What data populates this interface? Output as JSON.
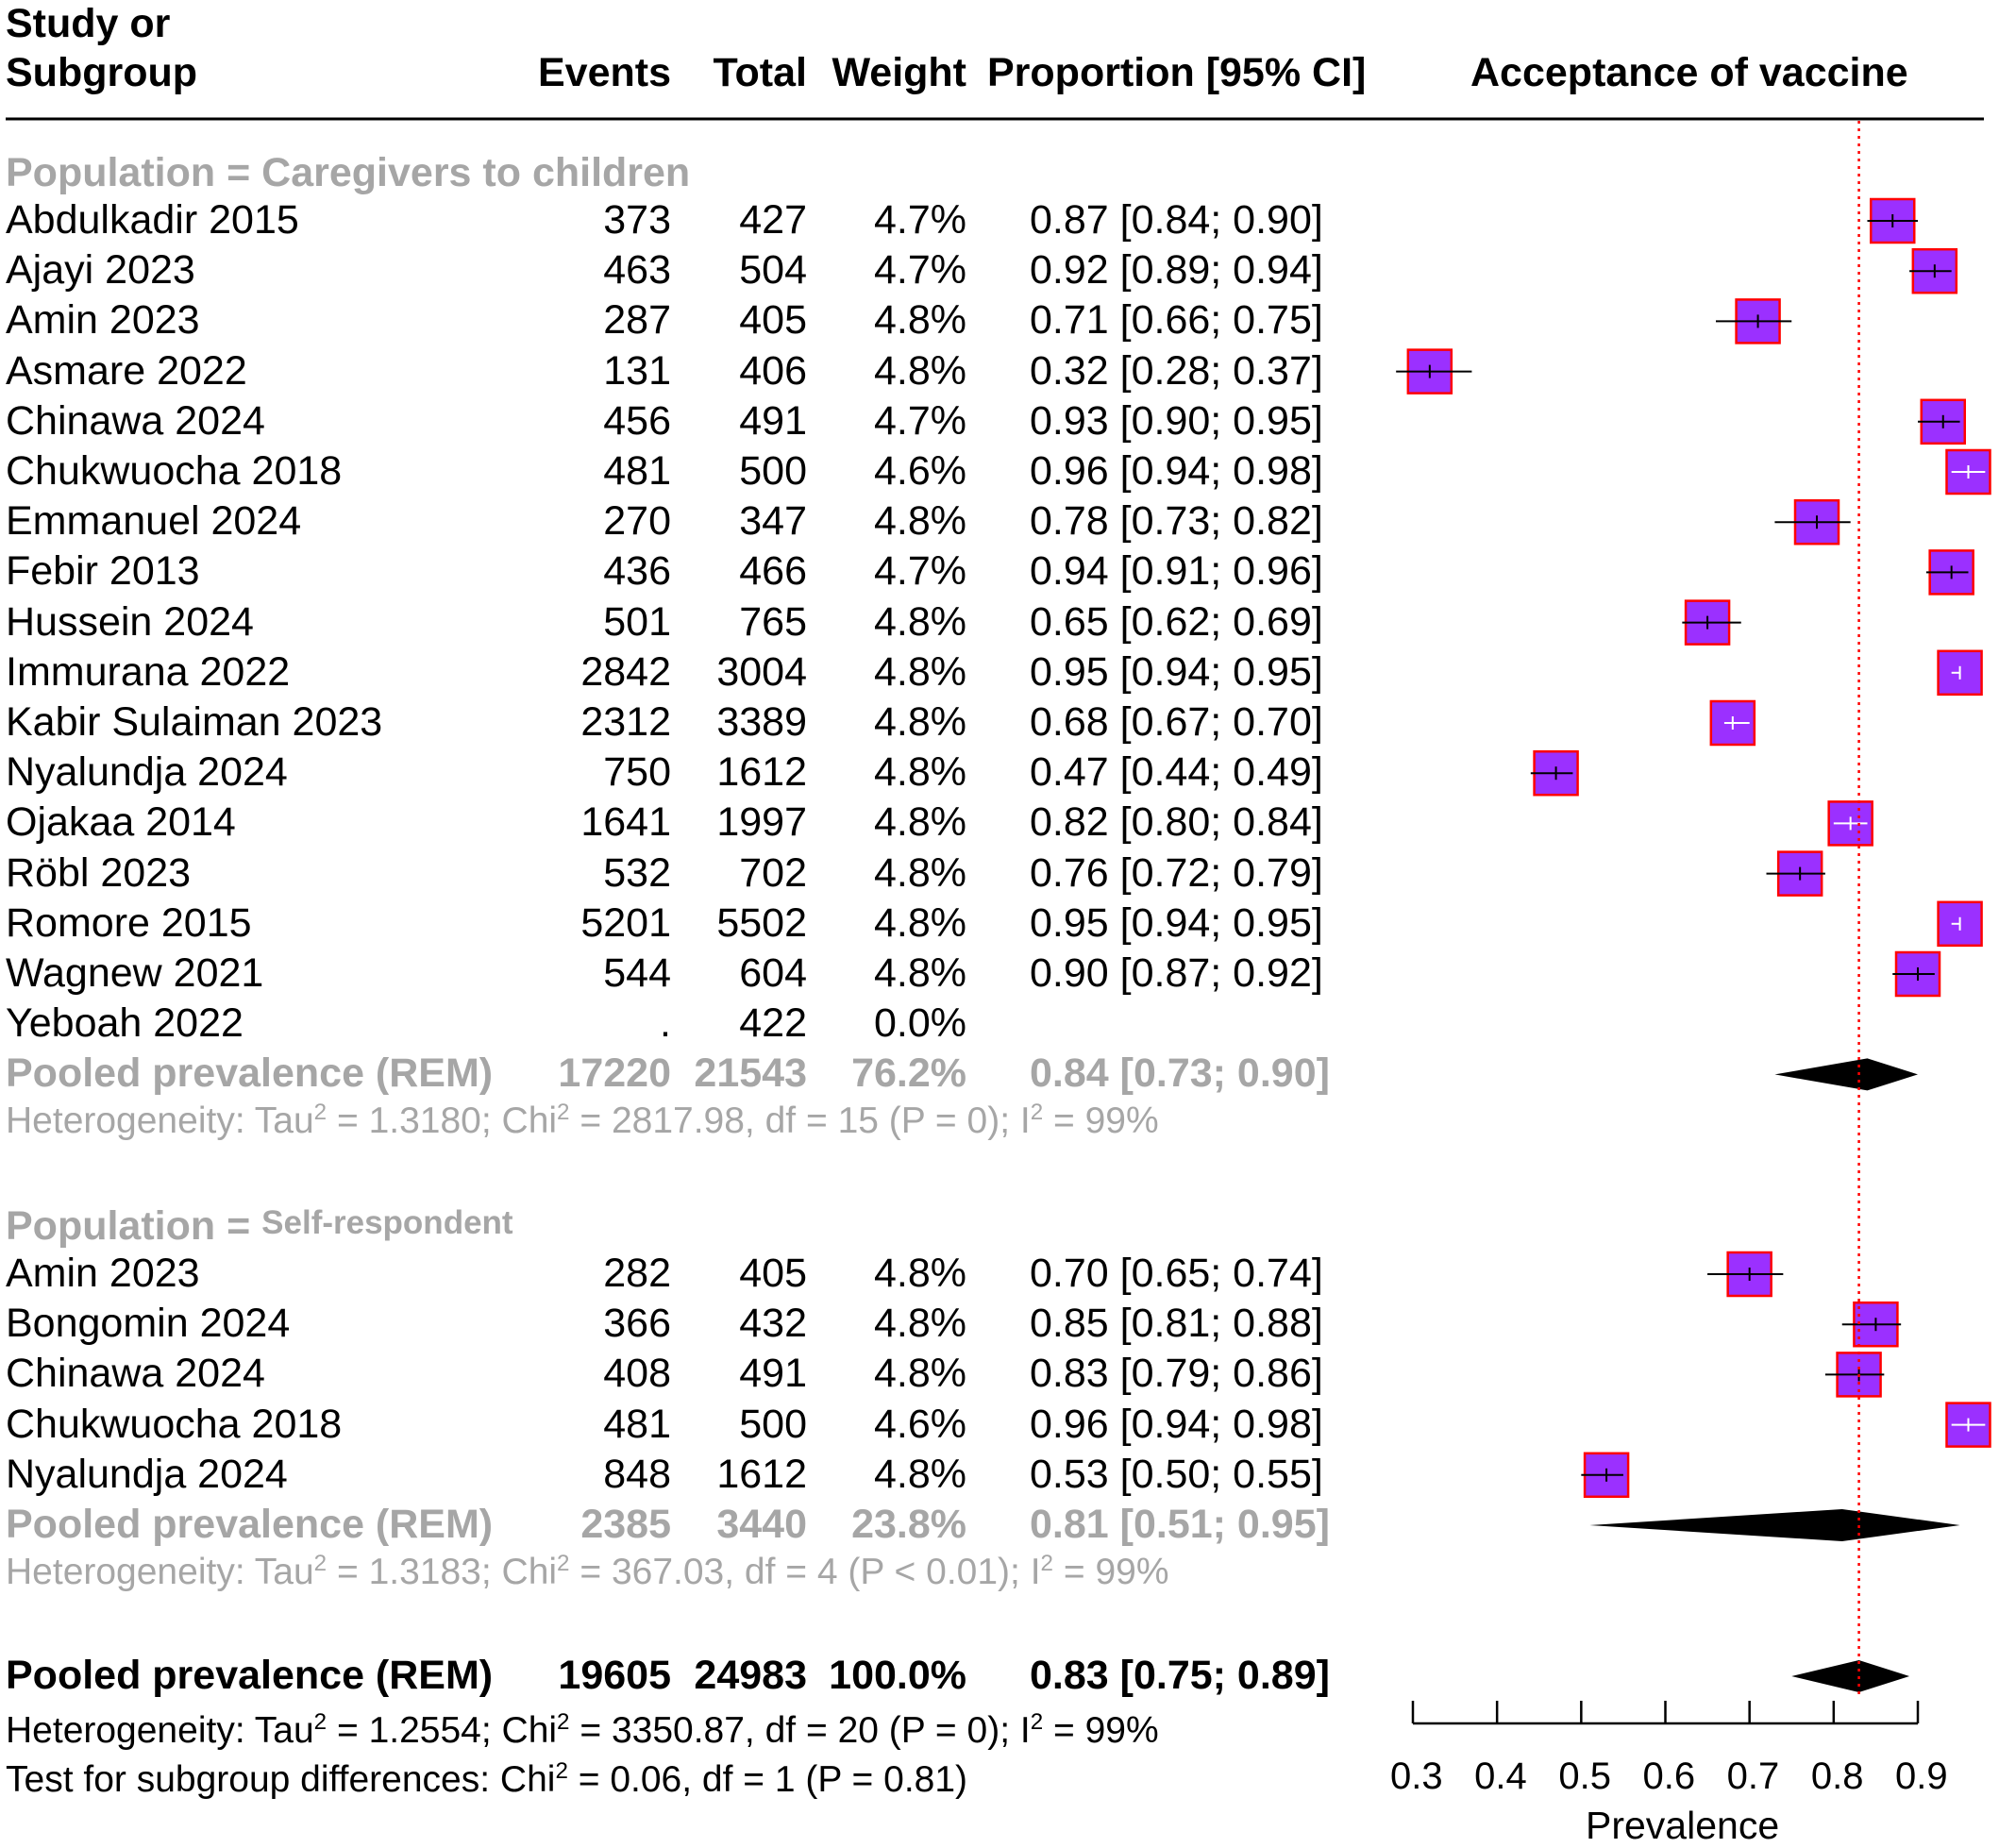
{
  "header": {
    "study_line1": "Study or",
    "study_line2": "Subgroup",
    "events": "Events",
    "total": "Total",
    "weight": "Weight",
    "proportion": "Proportion [95% CI]",
    "plot_title": "Acceptance of vaccine"
  },
  "groups": [
    {
      "title_prefix": "Population =",
      "title_name": "Caregivers to children",
      "studies": [
        {
          "study": "Abdulkadir 2015",
          "events": "373",
          "total": "427",
          "weight": "4.7%",
          "ci_text": "0.87 [0.84; 0.90]"
        },
        {
          "study": "Ajayi 2023",
          "events": "463",
          "total": "504",
          "weight": "4.7%",
          "ci_text": "0.92 [0.89; 0.94]"
        },
        {
          "study": "Amin 2023",
          "events": "287",
          "total": "405",
          "weight": "4.8%",
          "ci_text": "0.71 [0.66; 0.75]"
        },
        {
          "study": "Asmare 2022",
          "events": "131",
          "total": "406",
          "weight": "4.8%",
          "ci_text": "0.32 [0.28; 0.37]"
        },
        {
          "study": "Chinawa 2024",
          "events": "456",
          "total": "491",
          "weight": "4.7%",
          "ci_text": "0.93 [0.90; 0.95]"
        },
        {
          "study": "Chukwuocha 2018",
          "events": "481",
          "total": "500",
          "weight": "4.6%",
          "ci_text": "0.96 [0.94; 0.98]"
        },
        {
          "study": "Emmanuel 2024",
          "events": "270",
          "total": "347",
          "weight": "4.8%",
          "ci_text": "0.78 [0.73; 0.82]"
        },
        {
          "study": "Febir 2013",
          "events": "436",
          "total": "466",
          "weight": "4.7%",
          "ci_text": "0.94 [0.91; 0.96]"
        },
        {
          "study": "Hussein 2024",
          "events": "501",
          "total": "765",
          "weight": "4.8%",
          "ci_text": "0.65 [0.62; 0.69]"
        },
        {
          "study": "Immurana 2022",
          "events": "2842",
          "total": "3004",
          "weight": "4.8%",
          "ci_text": "0.95 [0.94; 0.95]"
        },
        {
          "study": "Kabir Sulaiman 2023",
          "events": "2312",
          "total": "3389",
          "weight": "4.8%",
          "ci_text": "0.68 [0.67; 0.70]"
        },
        {
          "study": "Nyalundja 2024",
          "events": "750",
          "total": "1612",
          "weight": "4.8%",
          "ci_text": "0.47 [0.44; 0.49]"
        },
        {
          "study": "Ojakaa 2014",
          "events": "1641",
          "total": "1997",
          "weight": "4.8%",
          "ci_text": "0.82 [0.80; 0.84]"
        },
        {
          "study": "Röbl 2023",
          "events": "532",
          "total": "702",
          "weight": "4.8%",
          "ci_text": "0.76 [0.72; 0.79]"
        },
        {
          "study": "Romore 2015",
          "events": "5201",
          "total": "5502",
          "weight": "4.8%",
          "ci_text": "0.95 [0.94; 0.95]"
        },
        {
          "study": "Wagnew 2021",
          "events": "544",
          "total": "604",
          "weight": "4.8%",
          "ci_text": "0.90 [0.87; 0.92]"
        },
        {
          "study": "Yeboah 2022",
          "events": ".",
          "total": "422",
          "weight": "0.0%",
          "ci_text": ""
        }
      ],
      "pooled": {
        "label": "Pooled prevalence",
        "model": "(REM)",
        "events": "17220",
        "total": "21543",
        "weight": "76.2%",
        "ci_text": "0.84 [0.73; 0.90]"
      },
      "het": {
        "p1": "Heterogeneity: Tau",
        "p2": " = 1.3180; Chi",
        "p3": " = 2817.98, df = 15 (P = 0); I",
        "p4": " = 99%"
      }
    },
    {
      "title_prefix": "Population =",
      "title_name": "Self-respondent",
      "studies": [
        {
          "study": "Amin 2023",
          "events": "282",
          "total": "405",
          "weight": "4.8%",
          "ci_text": "0.70 [0.65; 0.74]"
        },
        {
          "study": "Bongomin 2024",
          "events": "366",
          "total": "432",
          "weight": "4.8%",
          "ci_text": "0.85 [0.81; 0.88]"
        },
        {
          "study": "Chinawa 2024",
          "events": "408",
          "total": "491",
          "weight": "4.8%",
          "ci_text": "0.83 [0.79; 0.86]"
        },
        {
          "study": "Chukwuocha 2018",
          "events": "481",
          "total": "500",
          "weight": "4.6%",
          "ci_text": "0.96 [0.94; 0.98]"
        },
        {
          "study": "Nyalundja 2024",
          "events": "848",
          "total": "1612",
          "weight": "4.8%",
          "ci_text": "0.53 [0.50; 0.55]"
        }
      ],
      "pooled": {
        "label": "Pooled prevalence",
        "model": "(REM)",
        "events": "2385",
        "total": "3440",
        "weight": "23.8%",
        "ci_text": "0.81 [0.51; 0.95]"
      },
      "het": {
        "p1": "Heterogeneity: Tau",
        "p2": " = 1.3183; Chi",
        "p3": " = 367.03, df = 4 (P < 0.01); I",
        "p4": " = 99%"
      }
    }
  ],
  "overall": {
    "label": "Pooled prevalence",
    "model": "(REM)",
    "events": "19605",
    "total": "24983",
    "weight": "100.0%",
    "ci_text": "0.83 [0.75; 0.89]",
    "het": {
      "p1": "Heterogeneity: Tau",
      "p2": " = 1.2554; Chi",
      "p3": " = 3350.87, df = 20 (P = 0); I",
      "p4": " = 99%"
    },
    "subgroup_test": {
      "p1": "Test for subgroup differences: Chi",
      "p2": " = 0.06, df = 1 (P = 0.81)"
    },
    "sup2": "2"
  },
  "chart_data": {
    "type": "scatter",
    "title": "Acceptance of vaccine",
    "xlabel": "Prevalence",
    "xlim": [
      0.3,
      0.9
    ],
    "xticks": [
      "0.3",
      "0.4",
      "0.5",
      "0.6",
      "0.7",
      "0.8",
      "0.9"
    ],
    "reference_line": 0.83,
    "colors": {
      "box_fill": "#9b30ff",
      "box_edge": "#ff0000",
      "ref_line": "#ff0000",
      "diamond": "#000000",
      "grey": "#a6a6a6"
    },
    "series": [
      {
        "name": "Caregivers to children",
        "points": [
          {
            "y": 0.87,
            "lo": 0.84,
            "hi": 0.9
          },
          {
            "y": 0.92,
            "lo": 0.89,
            "hi": 0.94
          },
          {
            "y": 0.71,
            "lo": 0.66,
            "hi": 0.75
          },
          {
            "y": 0.32,
            "lo": 0.28,
            "hi": 0.37
          },
          {
            "y": 0.93,
            "lo": 0.9,
            "hi": 0.95
          },
          {
            "y": 0.96,
            "lo": 0.94,
            "hi": 0.98
          },
          {
            "y": 0.78,
            "lo": 0.73,
            "hi": 0.82
          },
          {
            "y": 0.94,
            "lo": 0.91,
            "hi": 0.96
          },
          {
            "y": 0.65,
            "lo": 0.62,
            "hi": 0.69
          },
          {
            "y": 0.95,
            "lo": 0.94,
            "hi": 0.95
          },
          {
            "y": 0.68,
            "lo": 0.67,
            "hi": 0.7
          },
          {
            "y": 0.47,
            "lo": 0.44,
            "hi": 0.49
          },
          {
            "y": 0.82,
            "lo": 0.8,
            "hi": 0.84
          },
          {
            "y": 0.76,
            "lo": 0.72,
            "hi": 0.79
          },
          {
            "y": 0.95,
            "lo": 0.94,
            "hi": 0.95
          },
          {
            "y": 0.9,
            "lo": 0.87,
            "hi": 0.92
          },
          null
        ],
        "pooled": {
          "y": 0.84,
          "lo": 0.73,
          "hi": 0.9
        }
      },
      {
        "name": "Self-respondent",
        "points": [
          {
            "y": 0.7,
            "lo": 0.65,
            "hi": 0.74
          },
          {
            "y": 0.85,
            "lo": 0.81,
            "hi": 0.88
          },
          {
            "y": 0.83,
            "lo": 0.79,
            "hi": 0.86
          },
          {
            "y": 0.96,
            "lo": 0.94,
            "hi": 0.98
          },
          {
            "y": 0.53,
            "lo": 0.5,
            "hi": 0.55
          }
        ],
        "pooled": {
          "y": 0.81,
          "lo": 0.51,
          "hi": 0.95
        }
      }
    ],
    "overall": {
      "y": 0.83,
      "lo": 0.75,
      "hi": 0.89
    }
  }
}
